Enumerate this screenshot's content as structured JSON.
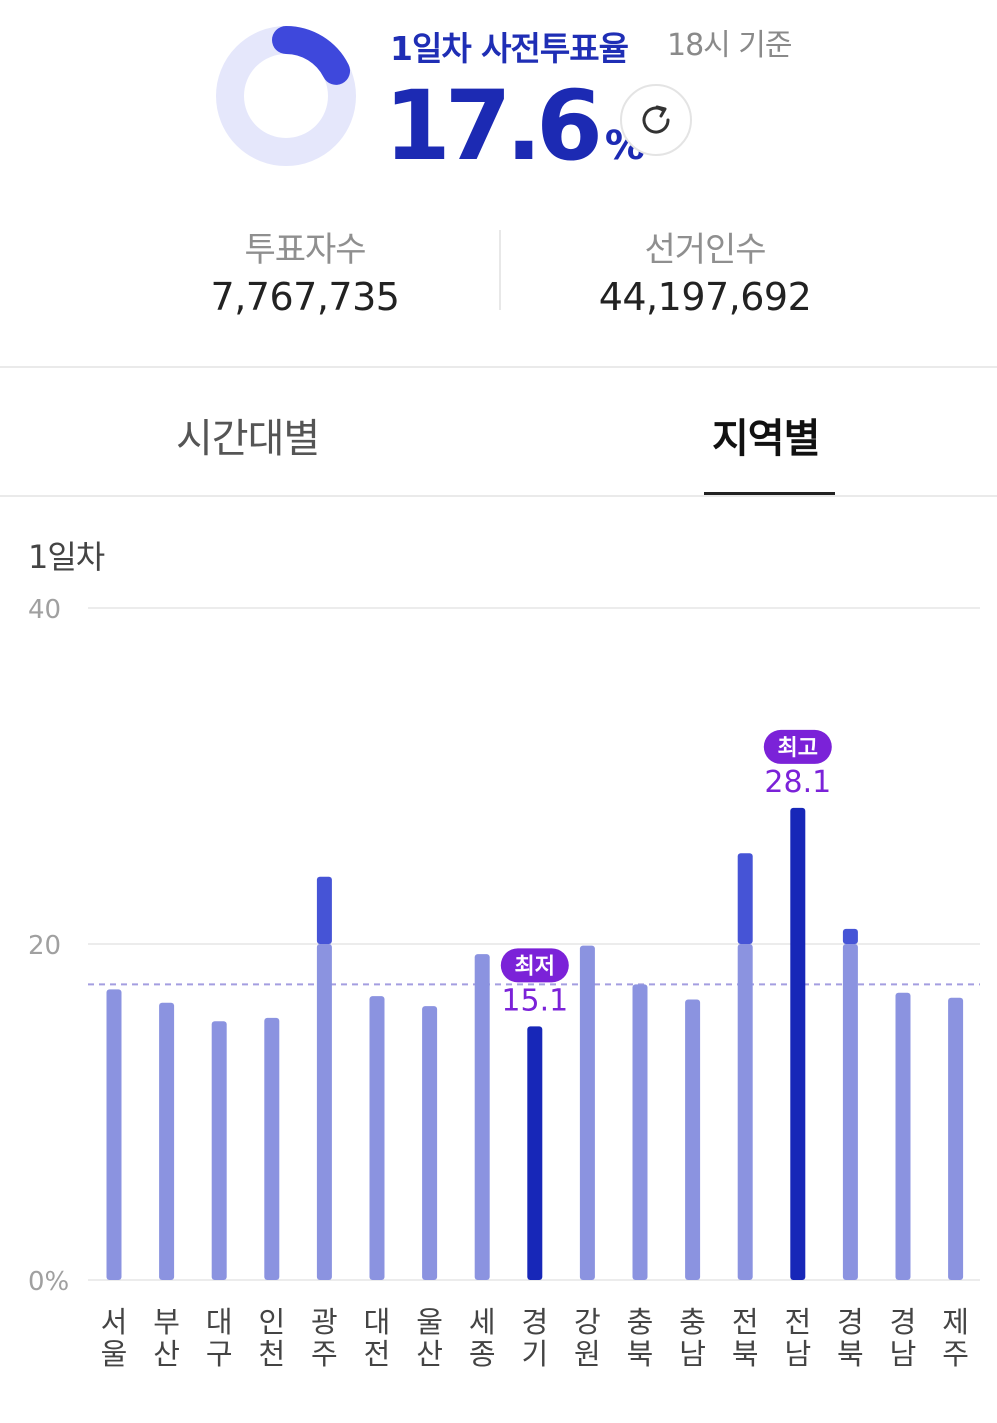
{
  "summary": {
    "title": "1일차 사전투표율",
    "basis": "18시 기준",
    "rate": "17.6",
    "rate_unit": "%",
    "rate_value": 17.6
  },
  "stats": {
    "voters_label": "투표자수",
    "voters_value": "7,767,735",
    "electors_label": "선거인수",
    "electors_value": "44,197,692"
  },
  "tabs": [
    {
      "label": "시간대별",
      "active": false
    },
    {
      "label": "지역별",
      "active": true
    }
  ],
  "chart_data": {
    "type": "bar",
    "title": "1일차",
    "categories": [
      "서울",
      "부산",
      "대구",
      "인천",
      "광주",
      "대전",
      "울산",
      "세종",
      "경기",
      "강원",
      "충북",
      "충남",
      "전북",
      "전남",
      "경북",
      "경남",
      "제주"
    ],
    "values": [
      17.3,
      16.5,
      15.4,
      15.6,
      24.0,
      16.9,
      16.3,
      19.4,
      15.1,
      19.9,
      17.6,
      16.7,
      25.4,
      28.1,
      20.9,
      17.1,
      16.8
    ],
    "yticks": [
      "0%",
      "20",
      "40"
    ],
    "ylim": [
      0,
      40
    ],
    "reference_line": 17.6,
    "min": {
      "category": "경기",
      "value": "15.1",
      "label": "최저"
    },
    "max": {
      "category": "전남",
      "value": "28.1",
      "label": "최고"
    },
    "grid": true,
    "colors": {
      "bar": "#8b93e0",
      "bar_above_20": "#4654d6",
      "highlight": "#1727b8",
      "badge": "#7b22d8",
      "reference": "#a49ee0",
      "ring_track": "#e5e7fb",
      "ring_fill": "#3e48dc"
    }
  }
}
